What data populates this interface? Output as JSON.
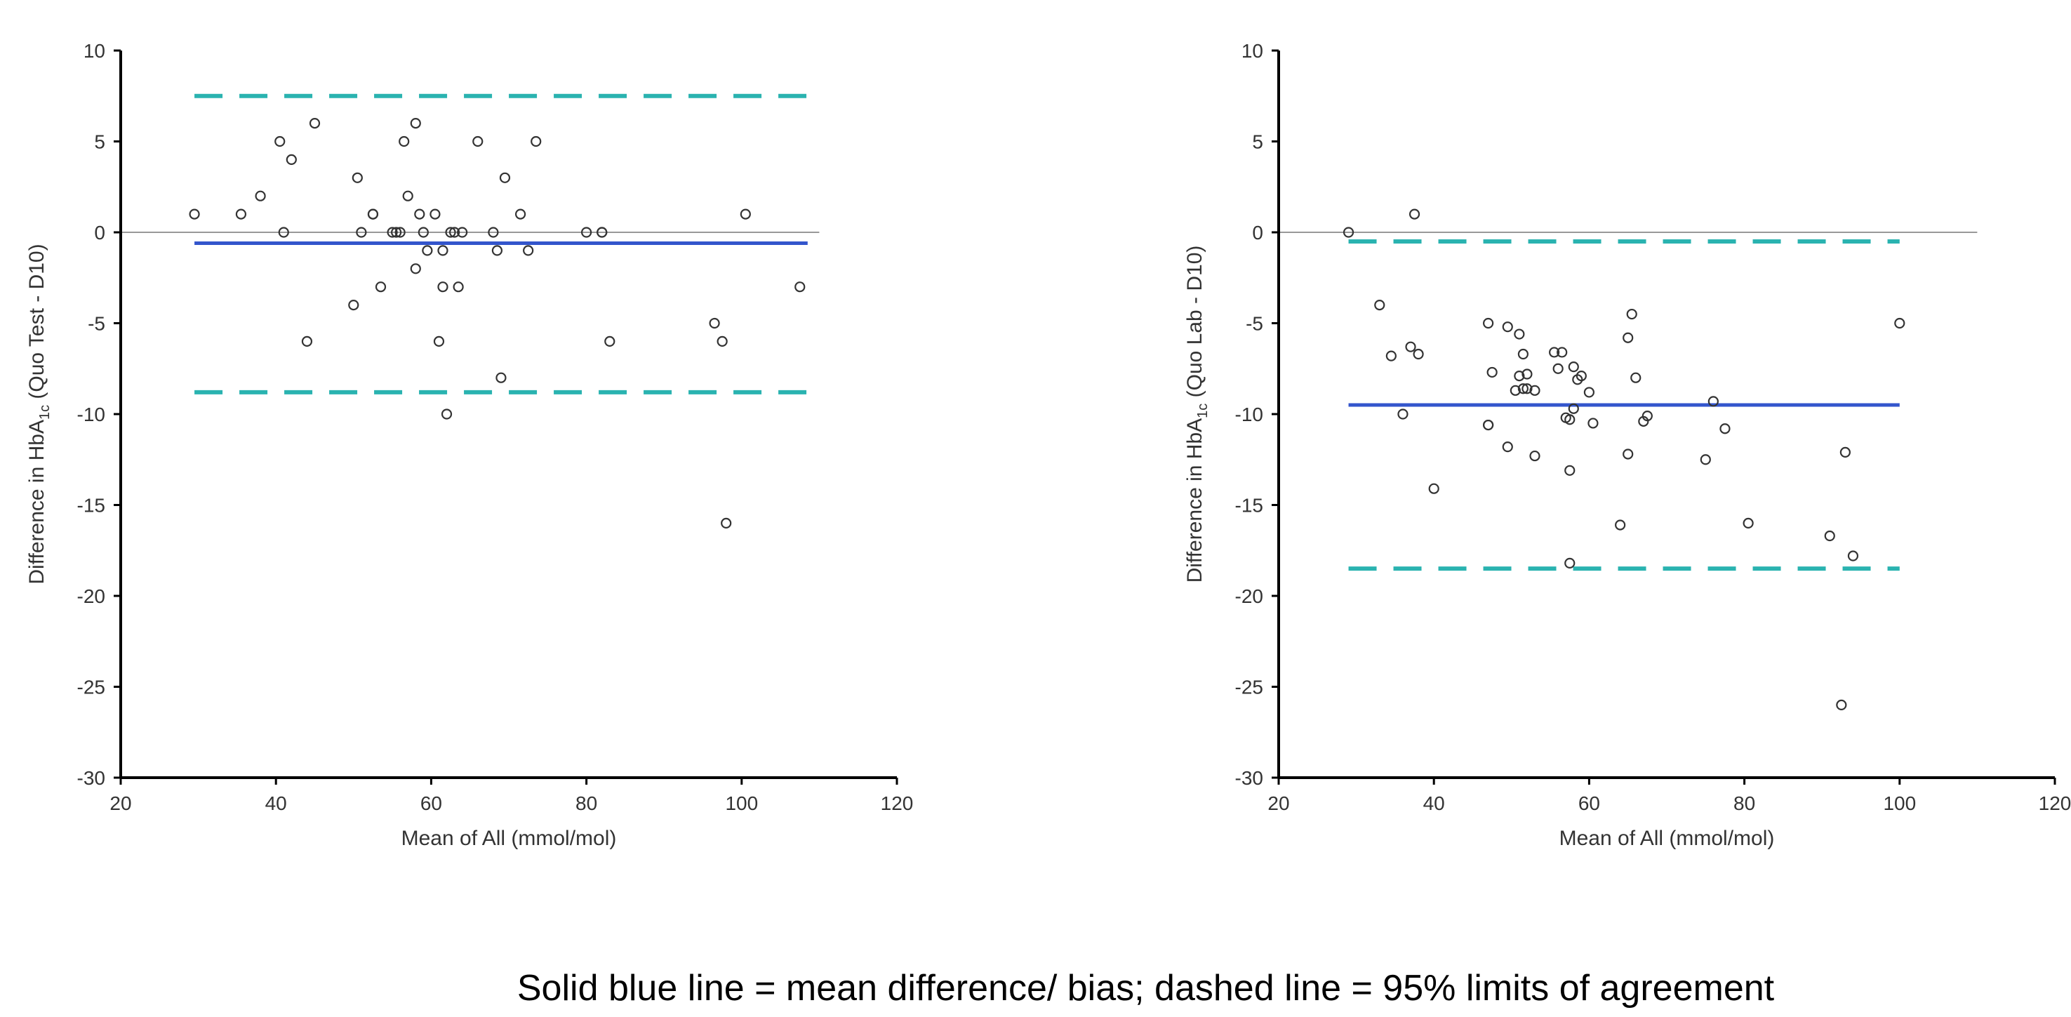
{
  "caption": "Solid blue line = mean difference/ bias; dashed line  =  95% limits of agreement",
  "colors": {
    "bias": "#3355cc",
    "limits": "#2ab3b0",
    "zero": "#999999",
    "points": "#333333",
    "axis": "#000000"
  },
  "chart_data": [
    {
      "type": "scatter",
      "title": "",
      "xlabel": "Mean of All (mmol/mol)",
      "ylabel_prefix": "Difference in HbA",
      "ylabel_sub": "1c",
      "ylabel_suffix": " (Quo Test - D10)",
      "xlim": [
        20,
        120
      ],
      "ylim": [
        -30,
        10
      ],
      "xticks": [
        20,
        40,
        60,
        80,
        100,
        120
      ],
      "yticks": [
        -30,
        -25,
        -20,
        -15,
        -10,
        -5,
        0,
        5,
        10
      ],
      "xtick_labels": [
        "20",
        "40",
        "60",
        "80",
        "100",
        "120"
      ],
      "ytick_labels": [
        "-30",
        "-25",
        "-20",
        "-15",
        "-10",
        "-5",
        "0",
        "5",
        "10"
      ],
      "grid": false,
      "zero_line": {
        "value": 0,
        "x_range": [
          20,
          110
        ]
      },
      "bias_line": {
        "value": -0.6,
        "x_range": [
          29.5,
          108.5
        ]
      },
      "limit_lines": [
        {
          "value": 7.5,
          "x_range": [
            29.5,
            108.5
          ]
        },
        {
          "value": -8.8,
          "x_range": [
            29.5,
            108.5
          ]
        }
      ],
      "x": [
        29.5,
        35.5,
        38,
        40.5,
        41,
        42,
        44,
        45,
        50,
        50.5,
        51,
        52.5,
        52.5,
        53.5,
        55,
        55.5,
        56,
        56.5,
        57,
        58,
        58,
        58.5,
        59,
        59.5,
        60.5,
        61,
        61.5,
        61.5,
        62,
        62.5,
        63,
        63.5,
        64,
        66,
        68,
        68.5,
        69,
        69.5,
        71.5,
        72.5,
        73.5,
        80,
        82,
        82,
        83,
        96.5,
        97.5,
        98,
        100.5,
        107.5
      ],
      "y": [
        1,
        1,
        2,
        5,
        0,
        4,
        -6,
        6,
        -4,
        3,
        0,
        1,
        1,
        -3,
        0,
        0,
        0,
        5,
        2,
        6,
        -2,
        1,
        0,
        -1,
        1,
        -6,
        -3,
        -1,
        -10,
        0,
        0,
        -3,
        0,
        5,
        0,
        -1,
        -8,
        3,
        1,
        -1,
        5,
        0,
        0,
        0,
        -6,
        -5,
        -6,
        -16,
        1,
        -3
      ]
    },
    {
      "type": "scatter",
      "title": "",
      "xlabel": "Mean of All (mmol/mol)",
      "ylabel_prefix": "Difference in HbA",
      "ylabel_sub": "1c",
      "ylabel_suffix": " (Quo Lab - D10)",
      "xlim": [
        20,
        120
      ],
      "ylim": [
        -30,
        10
      ],
      "xticks": [
        20,
        40,
        60,
        80,
        100,
        120
      ],
      "yticks": [
        -30,
        -25,
        -20,
        -15,
        -10,
        -5,
        0,
        5,
        10
      ],
      "xtick_labels": [
        "20",
        "40",
        "60",
        "80",
        "100",
        "120"
      ],
      "ytick_labels": [
        "-30",
        "-25",
        "-20",
        "-15",
        "-10",
        "-5",
        "0",
        "5",
        "10"
      ],
      "grid": false,
      "zero_line": {
        "value": 0,
        "x_range": [
          20,
          110
        ]
      },
      "bias_line": {
        "value": -9.5,
        "x_range": [
          29,
          100
        ]
      },
      "limit_lines": [
        {
          "value": -0.5,
          "x_range": [
            29,
            100
          ]
        },
        {
          "value": -18.5,
          "x_range": [
            29,
            100
          ]
        }
      ],
      "x": [
        29,
        33,
        34.5,
        36,
        37,
        37.5,
        38,
        40,
        47,
        47,
        47,
        47.5,
        49.5,
        49.5,
        50.5,
        51,
        51,
        51.5,
        51.5,
        52,
        52,
        53,
        53,
        55.5,
        56,
        56.5,
        57,
        57.5,
        57.5,
        57.5,
        58,
        58,
        58.5,
        59,
        60,
        60.5,
        64,
        65,
        65,
        65.5,
        66,
        67,
        67.5,
        75,
        76,
        77.5,
        80.5,
        91,
        92.5,
        93,
        94,
        100
      ],
      "y": [
        0,
        -4,
        -6.8,
        -10,
        -6.3,
        1,
        -6.7,
        -14.1,
        -5,
        -10.6,
        -10.6,
        -7.7,
        -5.2,
        -11.8,
        -8.7,
        -5.6,
        -7.9,
        -6.7,
        -8.6,
        -7.8,
        -8.6,
        -12.3,
        -8.7,
        -6.6,
        -7.5,
        -6.6,
        -10.2,
        -13.1,
        -10.3,
        -18.2,
        -9.7,
        -7.4,
        -8.1,
        -7.9,
        -8.8,
        -10.5,
        -16.1,
        -12.2,
        -5.8,
        -4.5,
        -8,
        -10.4,
        -10.1,
        -12.5,
        -9.3,
        -10.8,
        -16,
        -16.7,
        -26,
        -12.1,
        -17.8,
        -5
      ]
    }
  ]
}
